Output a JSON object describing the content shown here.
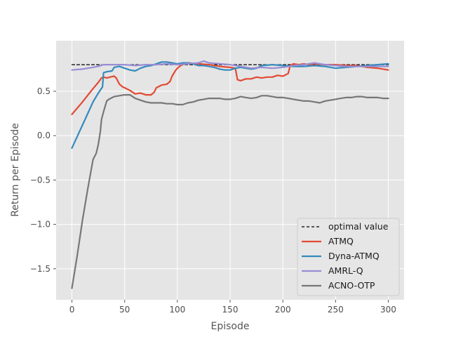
{
  "chart_data": {
    "type": "line",
    "title": "",
    "xlabel": "Episode",
    "ylabel": "Return per Episode",
    "xlim": [
      -15,
      315
    ],
    "ylim": [
      -1.85,
      1.07
    ],
    "xticks": [
      0,
      50,
      100,
      150,
      200,
      250,
      300
    ],
    "xtick_labels": [
      "0",
      "50",
      "100",
      "150",
      "200",
      "250",
      "300"
    ],
    "yticks": [
      -1.5,
      -1.0,
      -0.5,
      0.0,
      0.5
    ],
    "ytick_labels": [
      "−1.5",
      "−1.0",
      "−0.5",
      "0.0",
      "0.5"
    ],
    "grid": true,
    "legend_position": "lower-right",
    "background": "#e5e5e5",
    "series": [
      {
        "name": "optimal value",
        "color": "#000000",
        "dashed": true,
        "x": [
          0,
          300
        ],
        "y": [
          0.8,
          0.8
        ]
      },
      {
        "name": "ATMQ",
        "color": "#e24a33",
        "dashed": false,
        "x": [
          0,
          10,
          20,
          25,
          28,
          30,
          33,
          36,
          40,
          42,
          45,
          48,
          50,
          55,
          60,
          65,
          70,
          75,
          78,
          80,
          85,
          90,
          93,
          95,
          98,
          100,
          103,
          105,
          110,
          120,
          130,
          140,
          150,
          155,
          157,
          160,
          165,
          170,
          175,
          180,
          185,
          190,
          195,
          200,
          205,
          207,
          210,
          215,
          220,
          225,
          230,
          240,
          250,
          260,
          270,
          280,
          290,
          300
        ],
        "y": [
          0.24,
          0.38,
          0.53,
          0.6,
          0.65,
          0.66,
          0.65,
          0.66,
          0.67,
          0.65,
          0.58,
          0.55,
          0.54,
          0.51,
          0.47,
          0.48,
          0.46,
          0.46,
          0.49,
          0.54,
          0.57,
          0.58,
          0.61,
          0.67,
          0.73,
          0.76,
          0.79,
          0.8,
          0.82,
          0.81,
          0.8,
          0.78,
          0.77,
          0.76,
          0.63,
          0.62,
          0.64,
          0.64,
          0.66,
          0.65,
          0.66,
          0.66,
          0.68,
          0.67,
          0.7,
          0.79,
          0.81,
          0.8,
          0.81,
          0.8,
          0.81,
          0.8,
          0.8,
          0.79,
          0.79,
          0.77,
          0.76,
          0.74
        ]
      },
      {
        "name": "Dyna-ATMQ",
        "color": "#348abd",
        "dashed": false,
        "x": [
          0,
          10,
          20,
          25,
          29,
          30,
          33,
          38,
          40,
          45,
          50,
          55,
          60,
          65,
          70,
          75,
          80,
          85,
          90,
          95,
          100,
          105,
          110,
          115,
          120,
          125,
          130,
          135,
          140,
          145,
          150,
          155,
          160,
          165,
          170,
          175,
          180,
          190,
          200,
          210,
          220,
          230,
          240,
          250,
          260,
          270,
          280,
          290,
          300
        ],
        "y": [
          -0.14,
          0.12,
          0.38,
          0.48,
          0.55,
          0.71,
          0.72,
          0.73,
          0.77,
          0.78,
          0.76,
          0.74,
          0.73,
          0.76,
          0.78,
          0.79,
          0.81,
          0.83,
          0.83,
          0.82,
          0.81,
          0.82,
          0.82,
          0.81,
          0.79,
          0.79,
          0.78,
          0.77,
          0.75,
          0.74,
          0.74,
          0.76,
          0.77,
          0.76,
          0.75,
          0.76,
          0.79,
          0.8,
          0.79,
          0.78,
          0.78,
          0.79,
          0.78,
          0.76,
          0.77,
          0.78,
          0.79,
          0.8,
          0.81
        ]
      },
      {
        "name": "AMRL-Q",
        "color": "#988ed5",
        "dashed": false,
        "x": [
          0,
          10,
          20,
          25,
          30,
          40,
          50,
          60,
          70,
          80,
          90,
          100,
          110,
          120,
          125,
          130,
          140,
          150,
          160,
          170,
          180,
          190,
          200,
          210,
          220,
          230,
          240,
          250,
          260,
          270,
          280,
          290,
          300
        ],
        "y": [
          0.74,
          0.75,
          0.77,
          0.78,
          0.8,
          0.8,
          0.8,
          0.79,
          0.8,
          0.8,
          0.81,
          0.8,
          0.81,
          0.82,
          0.84,
          0.82,
          0.81,
          0.8,
          0.78,
          0.76,
          0.77,
          0.76,
          0.77,
          0.79,
          0.8,
          0.82,
          0.8,
          0.79,
          0.78,
          0.78,
          0.78,
          0.78,
          0.78
        ]
      },
      {
        "name": "ACNO-OTP",
        "color": "#777777",
        "dashed": false,
        "x": [
          0,
          5,
          10,
          15,
          20,
          23,
          25,
          27,
          28,
          30,
          33,
          35,
          40,
          45,
          50,
          55,
          60,
          65,
          70,
          75,
          80,
          85,
          90,
          95,
          100,
          105,
          110,
          115,
          120,
          125,
          130,
          135,
          140,
          145,
          150,
          155,
          160,
          165,
          170,
          175,
          180,
          185,
          190,
          195,
          200,
          205,
          210,
          215,
          220,
          225,
          230,
          235,
          240,
          245,
          250,
          255,
          260,
          265,
          270,
          275,
          280,
          285,
          290,
          295,
          300
        ],
        "y": [
          -1.72,
          -1.35,
          -0.95,
          -0.6,
          -0.27,
          -0.2,
          -0.1,
          0.05,
          0.18,
          0.27,
          0.39,
          0.41,
          0.44,
          0.45,
          0.46,
          0.46,
          0.42,
          0.4,
          0.38,
          0.37,
          0.37,
          0.37,
          0.36,
          0.36,
          0.35,
          0.35,
          0.37,
          0.38,
          0.4,
          0.41,
          0.42,
          0.42,
          0.42,
          0.41,
          0.41,
          0.42,
          0.44,
          0.43,
          0.42,
          0.43,
          0.45,
          0.45,
          0.44,
          0.43,
          0.43,
          0.42,
          0.41,
          0.4,
          0.39,
          0.39,
          0.38,
          0.37,
          0.39,
          0.4,
          0.41,
          0.42,
          0.43,
          0.43,
          0.44,
          0.44,
          0.43,
          0.43,
          0.43,
          0.42,
          0.42
        ]
      }
    ]
  }
}
